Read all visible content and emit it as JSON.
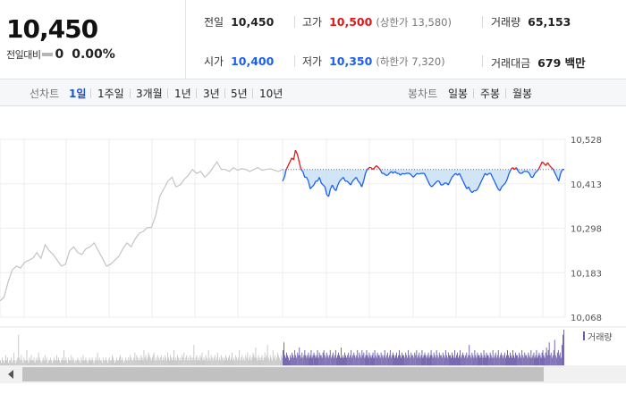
{
  "price": "10,450",
  "change": {
    "label": "전일대비",
    "value": "0",
    "percent": "0.00%"
  },
  "stats": {
    "prev_close": {
      "label": "전일",
      "value": "10,450"
    },
    "high": {
      "label": "고가",
      "value": "10,500",
      "sub": "(상한가 13,580)"
    },
    "volume": {
      "label": "거래량",
      "value": "65,153"
    },
    "open": {
      "label": "시가",
      "value": "10,400"
    },
    "low": {
      "label": "저가",
      "value": "10,350",
      "sub": "(하한가 7,320)"
    },
    "amount": {
      "label": "거래대금",
      "value": "679 백만"
    }
  },
  "toolbar": {
    "line_label": "선차트",
    "line_periods": [
      "1일",
      "1주일",
      "3개월",
      "1년",
      "3년",
      "5년",
      "10년"
    ],
    "selected_period": "1일",
    "candle_label": "봉차트",
    "candle_periods": [
      "일봉",
      "주봉",
      "월봉"
    ]
  },
  "colors": {
    "up": "#e3161a",
    "down": "#1a5ff3",
    "prev_series": "#c4c4c4",
    "volume": "#6a5aa8",
    "fill_below": "#c3dcf3"
  },
  "chart_data": {
    "type": "line",
    "y_ticks": [
      "10,528",
      "10,413",
      "10,298",
      "10,183",
      "10,068"
    ],
    "y_tick_values": [
      10528,
      10413,
      10298,
      10183,
      10068
    ],
    "ylim": [
      10068,
      10528
    ],
    "reference_price": 10450,
    "volume_legend": "거래량",
    "grid": true,
    "series": [
      {
        "values": [
          10110,
          10120,
          10160,
          10190,
          10200,
          10195,
          10210,
          10215,
          10220,
          10235,
          10220,
          10255,
          10240,
          10230,
          10215,
          10200,
          10205,
          10240,
          10250,
          10235,
          10230,
          10245,
          10250,
          10260,
          10240,
          10220,
          10200,
          10205,
          10215,
          10225,
          10245,
          10260,
          10250,
          10270,
          10285,
          10290,
          10300,
          10300,
          10330,
          10380,
          10400,
          10420,
          10430,
          10405,
          10410,
          10425,
          10435,
          10450,
          10440,
          10445,
          10430,
          10440,
          10455,
          10470,
          10450,
          10450,
          10445,
          10455,
          10448,
          10452,
          10450,
          10445,
          10450,
          10455,
          10448,
          10450,
          10452,
          10448,
          10445,
          10450
        ]
      },
      {
        "values": [
          10420,
          10430,
          10450,
          10460,
          10470,
          10480,
          10475,
          10500,
          10490,
          10470,
          10450,
          10445,
          10430,
          10430,
          10420,
          10400,
          10405,
          10410,
          10420,
          10420,
          10430,
          10415,
          10410,
          10405,
          10385,
          10380,
          10400,
          10410,
          10400,
          10395,
          10410,
          10420,
          10425,
          10430,
          10420,
          10420,
          10415,
          10410,
          10420,
          10425,
          10430,
          10420,
          10415,
          10405,
          10420,
          10440,
          10450,
          10455,
          10455,
          10450,
          10455,
          10460,
          10455,
          10450,
          10440,
          10440,
          10435,
          10435,
          10440,
          10445,
          10440,
          10445,
          10440,
          10440,
          10435,
          10440,
          10438,
          10440,
          10440,
          10440,
          10435,
          10430,
          10435,
          10440,
          10438,
          10440,
          10440,
          10440,
          10430,
          10420,
          10410,
          10405,
          10410,
          10415,
          10420,
          10420,
          10410,
          10410,
          10415,
          10415,
          10410,
          10420,
          10430,
          10435,
          10440,
          10435,
          10440,
          10430,
          10420,
          10410,
          10400,
          10405,
          10395,
          10390,
          10395,
          10395,
          10400,
          10410,
          10420,
          10430,
          10440,
          10435,
          10440,
          10440,
          10430,
          10420,
          10410,
          10400,
          10395,
          10405,
          10410,
          10415,
          10425,
          10440,
          10450,
          10455,
          10450,
          10455,
          10445,
          10440,
          10440,
          10445,
          10445,
          10445,
          10440,
          10430,
          10430,
          10440,
          10445,
          10450,
          10460,
          10470,
          10465,
          10460,
          10468,
          10460,
          10455,
          10450,
          10440,
          10430,
          10420,
          10440,
          10450,
          10450
        ]
      }
    ],
    "volume": [
      2,
      1,
      3,
      2,
      1,
      2,
      4,
      2,
      3,
      1,
      2,
      2,
      3,
      1,
      2,
      5,
      2,
      1,
      2,
      3,
      12,
      3,
      2,
      4,
      2,
      1,
      3,
      2,
      2,
      6,
      2,
      1,
      3,
      2,
      4,
      2,
      2,
      3,
      1,
      2,
      3,
      2,
      5,
      3,
      2,
      1,
      2,
      3,
      2,
      4,
      2,
      3,
      1,
      2,
      2,
      3,
      2,
      1,
      2,
      3,
      2,
      2,
      4,
      2,
      3,
      2,
      1,
      2,
      3,
      2,
      6,
      2,
      3,
      2,
      1,
      3,
      2,
      2,
      4,
      2,
      3,
      2,
      1,
      2,
      2,
      3,
      2,
      2,
      1,
      3,
      2,
      4,
      2,
      2,
      3,
      2,
      1,
      2,
      3,
      2,
      2,
      3,
      2,
      1,
      2,
      3,
      2,
      5,
      2,
      3,
      2,
      2,
      1,
      3,
      2,
      2,
      3,
      2,
      1,
      2,
      3,
      2,
      2,
      4,
      3,
      2,
      1,
      2,
      3,
      2,
      2,
      3,
      4,
      2,
      3,
      2,
      1,
      2,
      3,
      2,
      2,
      3,
      2,
      4,
      3,
      2,
      2,
      3,
      5,
      2,
      4,
      3,
      2,
      3,
      2,
      4,
      3,
      2,
      6,
      3,
      4,
      2,
      3,
      5,
      4,
      3,
      2,
      3,
      4,
      5,
      2,
      3,
      2,
      4,
      3,
      2,
      3,
      4,
      2,
      3,
      2,
      4,
      3,
      2,
      5,
      3,
      2,
      4,
      3,
      2,
      3,
      6,
      2,
      3,
      2,
      4,
      3,
      2,
      3,
      2,
      4,
      3,
      5,
      2,
      3,
      4,
      2,
      3,
      2,
      4,
      3,
      2,
      3,
      8,
      2,
      3,
      4,
      2,
      3,
      2,
      4,
      3,
      5,
      2,
      3,
      2,
      4,
      3,
      2,
      6,
      3,
      2,
      4,
      3,
      2,
      3,
      4,
      2,
      3,
      5,
      2,
      3,
      2,
      4,
      3,
      2,
      3,
      2,
      4,
      3,
      2,
      3,
      4,
      2,
      3,
      5,
      2,
      3,
      2,
      4,
      3,
      2,
      3,
      6,
      2,
      3,
      4,
      2,
      3,
      2,
      4,
      3,
      5,
      2,
      3,
      4,
      2,
      3,
      5,
      4,
      3,
      7,
      3,
      2,
      4,
      3,
      2,
      3,
      4,
      2,
      3,
      5,
      3,
      4,
      8,
      3,
      2,
      4,
      3,
      2,
      6,
      3,
      4,
      2,
      3,
      5,
      4,
      3,
      2,
      4,
      3,
      6,
      9,
      4,
      3,
      5,
      4,
      3,
      2,
      4,
      3,
      5,
      4,
      3,
      6,
      4,
      3,
      5,
      4,
      7,
      4,
      3,
      5,
      3,
      4,
      6,
      4,
      3,
      4,
      5,
      3,
      4,
      6,
      3,
      4,
      5,
      4,
      3,
      4,
      6,
      3,
      5,
      4,
      4,
      3,
      5,
      6,
      4,
      3,
      5,
      4,
      3,
      4,
      6,
      3,
      4,
      5,
      3,
      4,
      6,
      3,
      4,
      5,
      4,
      3,
      7,
      3,
      4,
      3,
      5,
      4,
      3,
      4,
      5,
      3,
      4,
      6,
      3,
      4,
      5,
      4,
      3,
      4,
      6,
      3,
      5,
      4,
      3,
      6,
      4,
      5,
      3,
      4,
      6,
      4,
      3,
      5,
      4,
      3,
      4,
      5,
      3,
      6,
      4,
      3,
      5,
      4,
      4,
      3,
      5,
      4,
      3,
      4,
      6,
      3,
      4,
      5,
      3,
      4,
      6,
      3,
      4,
      5,
      4,
      3,
      4,
      5,
      3,
      4,
      6,
      4,
      3,
      5,
      4,
      4,
      3,
      5,
      4,
      3,
      6,
      4,
      3,
      5,
      4,
      4,
      3,
      5,
      4,
      6,
      3,
      4,
      5,
      3,
      4,
      6,
      3,
      4,
      5,
      4,
      3,
      4,
      5,
      3,
      4,
      6,
      4,
      3,
      5,
      4,
      3,
      6,
      4,
      3,
      5,
      4,
      4,
      3,
      5,
      4,
      3,
      6,
      4,
      3,
      5,
      4,
      4,
      3,
      5,
      4,
      3,
      6,
      3,
      4,
      5,
      3,
      4,
      6,
      3,
      4,
      5,
      4,
      3,
      4,
      5,
      3,
      4,
      8,
      4,
      3,
      5,
      4,
      3,
      6,
      4,
      3,
      5,
      4,
      4,
      3,
      5,
      4,
      3,
      6,
      4,
      3,
      5,
      4,
      4,
      3,
      5,
      4,
      3,
      6,
      3,
      4,
      5,
      3,
      4,
      6,
      3,
      4,
      5,
      4,
      3,
      4,
      5,
      3,
      4,
      6,
      4,
      3,
      5,
      4,
      3,
      6,
      4,
      3,
      5,
      4,
      4,
      3,
      5,
      4,
      3,
      6,
      4,
      3,
      5,
      4,
      4,
      3,
      5,
      4,
      3,
      6,
      3,
      4,
      5,
      3,
      4,
      6,
      3,
      4,
      5,
      4,
      3,
      5,
      6,
      4,
      3,
      5,
      7,
      4,
      6,
      9,
      4,
      5,
      3,
      4,
      6,
      10,
      4,
      3,
      5,
      6,
      4,
      5,
      3,
      8,
      12,
      14
    ]
  }
}
